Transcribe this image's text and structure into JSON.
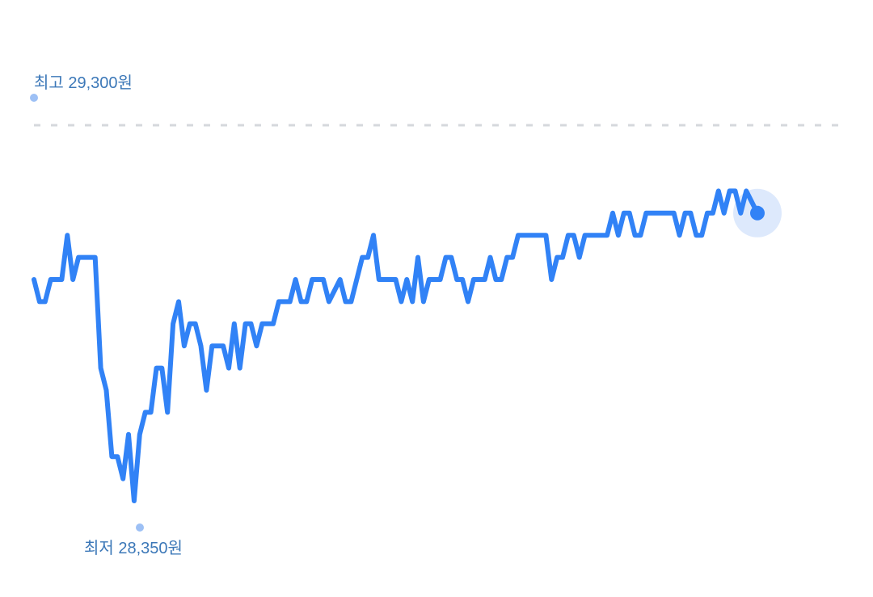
{
  "chart_data": {
    "type": "line",
    "title": "",
    "xlabel": "",
    "ylabel": "",
    "unit": "원",
    "max_label": "최고 29,300원",
    "min_label": "최저 28,350원",
    "max_value": 29300,
    "min_value": 28350,
    "grid": false,
    "reference_line": "dashed",
    "ylim": [
      28350,
      29300
    ],
    "colors": {
      "line": "#3182f6",
      "marker": "#9dc0f5",
      "label": "#3c78b8",
      "halo": "#dde9fc",
      "reference": "#d5d8dc"
    },
    "points": [
      [
        0,
        28850
      ],
      [
        1,
        28800
      ],
      [
        2,
        28800
      ],
      [
        3,
        28850
      ],
      [
        5,
        28850
      ],
      [
        6,
        28950
      ],
      [
        7,
        28850
      ],
      [
        8,
        28900
      ],
      [
        11,
        28900
      ],
      [
        12,
        28650
      ],
      [
        13,
        28600
      ],
      [
        14,
        28450
      ],
      [
        15,
        28450
      ],
      [
        16,
        28400
      ],
      [
        17,
        28500
      ],
      [
        18,
        28350
      ],
      [
        19,
        28500
      ],
      [
        20,
        28550
      ],
      [
        21,
        28550
      ],
      [
        22,
        28650
      ],
      [
        23,
        28650
      ],
      [
        24,
        28550
      ],
      [
        25,
        28750
      ],
      [
        26,
        28800
      ],
      [
        27,
        28700
      ],
      [
        28,
        28750
      ],
      [
        29,
        28750
      ],
      [
        30,
        28700
      ],
      [
        31,
        28600
      ],
      [
        32,
        28700
      ],
      [
        34,
        28700
      ],
      [
        35,
        28650
      ],
      [
        36,
        28750
      ],
      [
        37,
        28650
      ],
      [
        38,
        28750
      ],
      [
        39,
        28750
      ],
      [
        40,
        28700
      ],
      [
        41,
        28750
      ],
      [
        43,
        28750
      ],
      [
        44,
        28800
      ],
      [
        46,
        28800
      ],
      [
        47,
        28850
      ],
      [
        48,
        28800
      ],
      [
        49,
        28800
      ],
      [
        50,
        28850
      ],
      [
        52,
        28850
      ],
      [
        53,
        28800
      ],
      [
        55,
        28850
      ],
      [
        56,
        28800
      ],
      [
        57,
        28800
      ],
      [
        59,
        28900
      ],
      [
        60,
        28900
      ],
      [
        61,
        28950
      ],
      [
        62,
        28850
      ],
      [
        65,
        28850
      ],
      [
        66,
        28800
      ],
      [
        67,
        28850
      ],
      [
        68,
        28800
      ],
      [
        69,
        28900
      ],
      [
        70,
        28800
      ],
      [
        71,
        28850
      ],
      [
        73,
        28850
      ],
      [
        74,
        28900
      ],
      [
        75,
        28900
      ],
      [
        76,
        28850
      ],
      [
        77,
        28850
      ],
      [
        78,
        28800
      ],
      [
        79,
        28850
      ],
      [
        81,
        28850
      ],
      [
        82,
        28900
      ],
      [
        83,
        28850
      ],
      [
        84,
        28850
      ],
      [
        85,
        28900
      ],
      [
        86,
        28900
      ],
      [
        87,
        28950
      ],
      [
        92,
        28950
      ],
      [
        93,
        28850
      ],
      [
        94,
        28900
      ],
      [
        95,
        28900
      ],
      [
        96,
        28950
      ],
      [
        97,
        28950
      ],
      [
        98,
        28900
      ],
      [
        99,
        28950
      ],
      [
        103,
        28950
      ],
      [
        104,
        29000
      ],
      [
        105,
        28950
      ],
      [
        106,
        29000
      ],
      [
        107,
        29000
      ],
      [
        108,
        28950
      ],
      [
        109,
        28950
      ],
      [
        110,
        29000
      ],
      [
        115,
        29000
      ],
      [
        116,
        28950
      ],
      [
        117,
        29000
      ],
      [
        118,
        29000
      ],
      [
        119,
        28950
      ],
      [
        120,
        28950
      ],
      [
        121,
        29000
      ],
      [
        122,
        29000
      ],
      [
        123,
        29050
      ],
      [
        124,
        29000
      ],
      [
        125,
        29050
      ],
      [
        126,
        29050
      ],
      [
        127,
        29000
      ],
      [
        128,
        29050
      ],
      [
        130,
        29000
      ]
    ]
  }
}
